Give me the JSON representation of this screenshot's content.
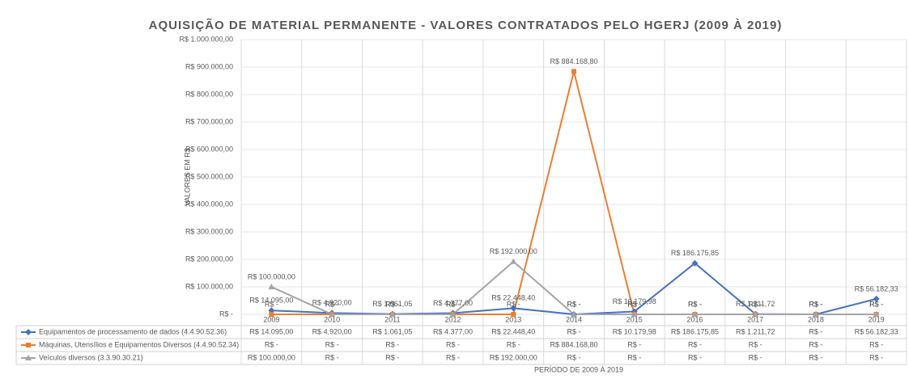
{
  "chart_data": {
    "type": "line",
    "title": "AQUISIÇÃO DE MATERIAL PERMANENTE - VALORES CONTRATADOS PELO HGERJ (2009 À 2019)",
    "y_label": "VALORES EM R$",
    "x_label": "PERÍODO DE 2009 À 2019",
    "categories": [
      "2009",
      "2010",
      "2011",
      "2012",
      "2013",
      "2014",
      "2015",
      "2016",
      "2017",
      "2018",
      "2019"
    ],
    "ylim": [
      0,
      1000000
    ],
    "yticks": [
      {
        "value": 0,
        "label": "R$ -"
      },
      {
        "value": 100000,
        "label": "R$ 100.000,00"
      },
      {
        "value": 200000,
        "label": "R$ 200.000,00"
      },
      {
        "value": 300000,
        "label": "R$ 300.000,00"
      },
      {
        "value": 400000,
        "label": "R$ 400.000,00"
      },
      {
        "value": 500000,
        "label": "R$ 500.000,00"
      },
      {
        "value": 600000,
        "label": "R$ 600.000,00"
      },
      {
        "value": 700000,
        "label": "R$ 700.000,00"
      },
      {
        "value": 800000,
        "label": "R$ 800.000,00"
      },
      {
        "value": 900000,
        "label": "R$ 900.000,00"
      },
      {
        "value": 1000000,
        "label": "R$ 1.000.000,00"
      }
    ],
    "grid": true,
    "series": [
      {
        "name": "Equipamentos de processamento de dados (4.4.90.52.36)",
        "color": "#4472c4",
        "marker": "diamond",
        "values": [
          14095,
          4920,
          1061.05,
          4377,
          22448.4,
          0,
          10179.98,
          186175.85,
          1211.72,
          0,
          56182.33
        ],
        "value_labels": [
          "R$ 14.095,00",
          "R$ 4.920,00",
          "R$ 1.061,05",
          "R$ 4.377,00",
          "R$ 22.448,40",
          "R$ -",
          "R$ 10.179,98",
          "R$ 186.175,85",
          "R$ 1.211,72",
          "R$ -",
          "R$ 56.182,33"
        ]
      },
      {
        "name": "Máquinas, Utensílios e Equipamentos Diversos (4.4.90.52.34)",
        "color": "#ed7d31",
        "marker": "square",
        "values": [
          0,
          0,
          0,
          0,
          0,
          884168.8,
          0,
          0,
          0,
          0,
          0
        ],
        "value_labels": [
          "R$ -",
          "R$ -",
          "R$ -",
          "R$ -",
          "R$ -",
          "R$ 884.168,80",
          "R$ -",
          "R$ -",
          "R$ -",
          "R$ -",
          "R$ -"
        ]
      },
      {
        "name": "Veículos diversos (3.3.90.30.21)",
        "color": "#a5a5a5",
        "marker": "triangle",
        "values": [
          100000,
          0,
          0,
          0,
          192000,
          0,
          0,
          0,
          0,
          0,
          0
        ],
        "value_labels": [
          "R$ 100.000,00",
          "R$ -",
          "R$ -",
          "R$ -",
          "R$ 192.000,00",
          "R$ -",
          "R$ -",
          "R$ -",
          "R$ -",
          "R$ -",
          "R$ -"
        ]
      }
    ]
  }
}
